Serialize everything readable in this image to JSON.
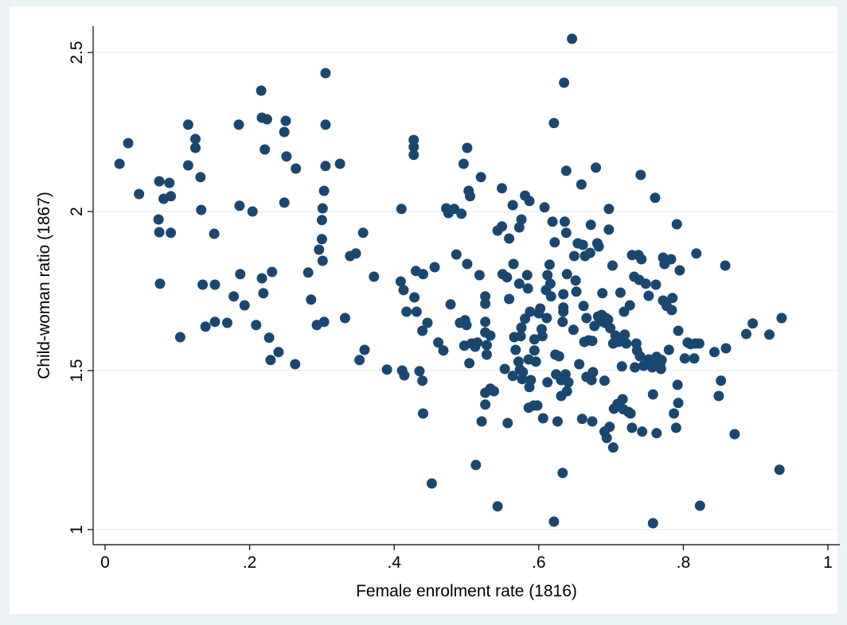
{
  "chart_data": {
    "type": "scatter",
    "x_label": "Female enrolment rate (1816)",
    "y_label": "Child-woman ratio (1867)",
    "xlim": [
      -0.0165,
      1.0165
    ],
    "ylim": [
      0.9525,
      2.5825
    ],
    "xticks": [
      0,
      {
        "value": 0.2,
        "label": ".2"
      },
      {
        "value": 0.4,
        "label": ".4"
      },
      {
        "value": 0.6,
        "label": ".6"
      },
      {
        "value": 0.8,
        "label": ".8"
      },
      1
    ],
    "yticks": [
      1,
      1.5,
      2,
      2.5
    ],
    "grid": true,
    "color": "#1a476f",
    "x": [
      0.02,
      0.032,
      0.047,
      0.075,
      0.074,
      0.075,
      0.081,
      0.089,
      0.091,
      0.091,
      0.076,
      0.104,
      0.115,
      0.115,
      0.125,
      0.125,
      0.132,
      0.133,
      0.135,
      0.139,
      0.152,
      0.151,
      0.152,
      0.169,
      0.178,
      0.185,
      0.186,
      0.187,
      0.193,
      0.204,
      0.209,
      0.216,
      0.217,
      0.224,
      0.221,
      0.217,
      0.219,
      0.227,
      0.229,
      0.231,
      0.24,
      0.248,
      0.25,
      0.248,
      0.251,
      0.264,
      0.263,
      0.281,
      0.285,
      0.293,
      0.296,
      0.3,
      0.3,
      0.301,
      0.303,
      0.301,
      0.303,
      0.305,
      0.305,
      0.305,
      0.325,
      0.332,
      0.339,
      0.347,
      0.352,
      0.357,
      0.359,
      0.372,
      0.39,
      0.409,
      0.41,
      0.411,
      0.413,
      0.414,
      0.417,
      0.427,
      0.427,
      0.427,
      0.43,
      0.428,
      0.431,
      0.435,
      0.439,
      0.44,
      0.439,
      0.44,
      0.446,
      0.452,
      0.456,
      0.461,
      0.468,
      0.472,
      0.475,
      0.478,
      0.483,
      0.486,
      0.491,
      0.493,
      0.496,
      0.497,
      0.498,
      0.5,
      0.501,
      0.501,
      0.503,
      0.504,
      0.505,
      0.507,
      0.512,
      0.513,
      0.515,
      0.518,
      0.52,
      0.521,
      0.526,
      0.526,
      0.526,
      0.526,
      0.526,
      0.526,
      0.528,
      0.528,
      0.533,
      0.533,
      0.538,
      0.543,
      0.543,
      0.549,
      0.549,
      0.55,
      0.553,
      0.557,
      0.559,
      0.559,
      0.556,
      0.564,
      0.564,
      0.565,
      0.566,
      0.568,
      0.572,
      0.573,
      0.573,
      0.574,
      0.575,
      0.576,
      0.576,
      0.577,
      0.578,
      0.581,
      0.581,
      0.584,
      0.585,
      0.586,
      0.586,
      0.587,
      0.587,
      0.588,
      0.589,
      0.593,
      0.594,
      0.594,
      0.596,
      0.598,
      0.6,
      0.602,
      0.604,
      0.605,
      0.606,
      0.608,
      0.61,
      0.611,
      0.612,
      0.612,
      0.615,
      0.616,
      0.617,
      0.619,
      0.621,
      0.621,
      0.622,
      0.623,
      0.624,
      0.626,
      0.628,
      0.631,
      0.631,
      0.633,
      0.633,
      0.634,
      0.634,
      0.634,
      0.635,
      0.636,
      0.637,
      0.638,
      0.638,
      0.639,
      0.639,
      0.641,
      0.646,
      0.648,
      0.649,
      0.651,
      0.652,
      0.654,
      0.656,
      0.659,
      0.66,
      0.661,
      0.662,
      0.663,
      0.664,
      0.666,
      0.666,
      0.669,
      0.671,
      0.672,
      0.673,
      0.674,
      0.674,
      0.675,
      0.677,
      0.679,
      0.681,
      0.682,
      0.683,
      0.685,
      0.687,
      0.688,
      0.691,
      0.691,
      0.692,
      0.693,
      0.694,
      0.696,
      0.697,
      0.697,
      0.698,
      0.699,
      0.702,
      0.703,
      0.703,
      0.704,
      0.706,
      0.709,
      0.71,
      0.713,
      0.715,
      0.716,
      0.717,
      0.718,
      0.719,
      0.721,
      0.724,
      0.726,
      0.727,
      0.729,
      0.729,
      0.732,
      0.733,
      0.735,
      0.736,
      0.738,
      0.739,
      0.74,
      0.741,
      0.742,
      0.743,
      0.745,
      0.748,
      0.752,
      0.752,
      0.756,
      0.757,
      0.758,
      0.758,
      0.76,
      0.761,
      0.762,
      0.763,
      0.763,
      0.768,
      0.769,
      0.77,
      0.772,
      0.772,
      0.774,
      0.777,
      0.78,
      0.783,
      0.784,
      0.785,
      0.787,
      0.79,
      0.791,
      0.792,
      0.793,
      0.793,
      0.795,
      0.802,
      0.806,
      0.81,
      0.815,
      0.817,
      0.818,
      0.822,
      0.823,
      0.843,
      0.849,
      0.852,
      0.858,
      0.859,
      0.871,
      0.887,
      0.896,
      0.919,
      0.933,
      0.936
    ],
    "y": [
      2.15,
      2.215,
      2.055,
      2.095,
      1.975,
      1.935,
      2.04,
      2.09,
      2.048,
      1.933,
      1.773,
      1.605,
      2.273,
      2.145,
      2.228,
      2.2,
      2.108,
      2.005,
      1.77,
      1.638,
      1.77,
      1.93,
      1.653,
      1.65,
      1.733,
      2.273,
      2.018,
      1.803,
      1.705,
      2.0,
      1.643,
      2.38,
      2.295,
      2.29,
      2.195,
      1.79,
      1.743,
      1.603,
      1.533,
      1.81,
      1.558,
      2.028,
      2.285,
      2.25,
      2.173,
      2.135,
      1.52,
      1.808,
      1.723,
      1.643,
      1.88,
      1.913,
      1.973,
      2.01,
      2.065,
      1.845,
      1.653,
      2.435,
      2.273,
      2.143,
      2.15,
      1.665,
      1.86,
      1.868,
      1.533,
      1.933,
      1.565,
      1.795,
      1.503,
      1.78,
      2.008,
      1.5,
      1.753,
      1.485,
      1.685,
      2.225,
      2.203,
      2.178,
      1.813,
      1.73,
      1.685,
      1.498,
      1.468,
      1.803,
      1.625,
      1.365,
      1.65,
      1.145,
      1.825,
      1.588,
      1.563,
      2.01,
      1.995,
      1.708,
      2.008,
      1.865,
      1.65,
      1.993,
      2.15,
      1.578,
      1.658,
      1.643,
      1.835,
      2.2,
      2.065,
      1.523,
      2.048,
      1.585,
      1.575,
      1.203,
      1.588,
      1.8,
      2.108,
      1.34,
      1.393,
      1.43,
      1.733,
      1.71,
      1.653,
      1.62,
      1.55,
      1.58,
      1.443,
      1.61,
      1.435,
      1.073,
      1.94,
      2.073,
      1.953,
      1.803,
      1.505,
      1.335,
      1.915,
      1.725,
      1.793,
      1.483,
      2.02,
      1.835,
      1.605,
      1.565,
      1.528,
      1.95,
      1.773,
      1.503,
      1.608,
      1.975,
      1.635,
      1.473,
      1.495,
      2.05,
      1.663,
      1.8,
      1.758,
      1.383,
      1.535,
      1.448,
      2.033,
      1.685,
      1.47,
      1.39,
      1.598,
      1.563,
      1.528,
      1.39,
      1.68,
      1.695,
      1.63,
      1.608,
      1.35,
      2.013,
      1.753,
      1.665,
      1.463,
      1.8,
      1.833,
      1.773,
      1.733,
      1.968,
      2.278,
      1.025,
      1.903,
      1.55,
      1.488,
      1.34,
      1.545,
      1.42,
      1.47,
      1.178,
      1.653,
      1.74,
      1.698,
      1.685,
      2.405,
      1.968,
      1.488,
      2.128,
      1.933,
      1.435,
      1.803,
      1.463,
      2.543,
      1.628,
      1.86,
      1.783,
      1.748,
      1.9,
      1.52,
      2.085,
      1.348,
      1.895,
      1.703,
      1.59,
      1.86,
      1.48,
      1.665,
      1.595,
      1.87,
      1.958,
      1.47,
      1.34,
      1.593,
      1.495,
      1.64,
      2.138,
      1.9,
      1.67,
      1.89,
      1.655,
      1.675,
      1.743,
      1.468,
      1.308,
      1.65,
      1.665,
      1.288,
      1.66,
      2.008,
      1.943,
      1.323,
      1.633,
      1.83,
      1.585,
      1.258,
      1.38,
      1.61,
      1.395,
      1.59,
      1.745,
      1.513,
      1.41,
      1.378,
      1.685,
      1.613,
      1.585,
      1.37,
      1.705,
      1.365,
      1.863,
      1.32,
      1.795,
      1.51,
      1.585,
      1.563,
      1.863,
      1.785,
      1.545,
      2.115,
      1.85,
      1.308,
      1.515,
      1.773,
      1.735,
      1.535,
      1.533,
      1.51,
      1.425,
      1.02,
      1.518,
      2.043,
      1.77,
      1.303,
      1.543,
      1.52,
      1.505,
      1.533,
      1.855,
      1.72,
      1.835,
      1.703,
      1.565,
      1.85,
      1.69,
      1.728,
      1.365,
      1.32,
      1.96,
      1.455,
      1.625,
      1.398,
      1.815,
      1.538,
      1.588,
      1.583,
      1.538,
      1.585,
      1.868,
      1.585,
      1.075,
      1.558,
      1.42,
      1.468,
      1.83,
      1.57,
      1.3,
      1.615,
      1.648,
      1.613,
      1.188,
      1.665
    ]
  }
}
